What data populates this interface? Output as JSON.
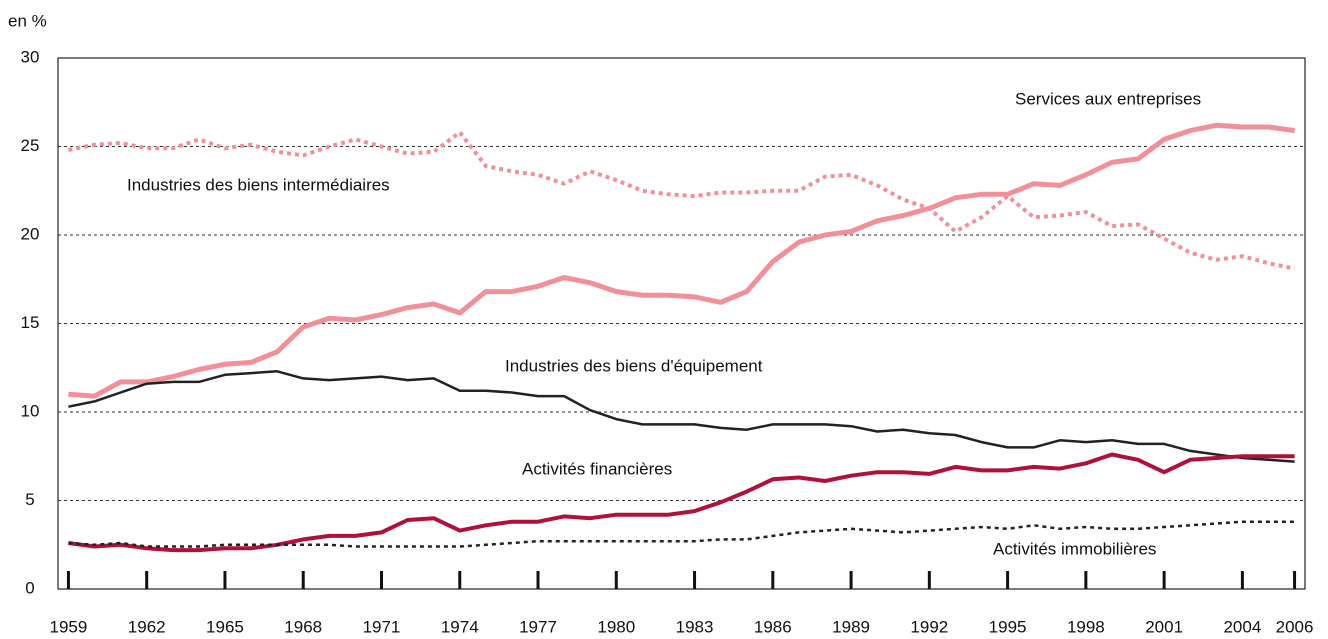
{
  "chart_data": {
    "type": "line",
    "unit_label": "en %",
    "x": [
      1959,
      1960,
      1961,
      1962,
      1963,
      1964,
      1965,
      1966,
      1967,
      1968,
      1969,
      1970,
      1971,
      1972,
      1973,
      1974,
      1975,
      1976,
      1977,
      1978,
      1979,
      1980,
      1981,
      1982,
      1983,
      1984,
      1985,
      1986,
      1987,
      1988,
      1989,
      1990,
      1991,
      1992,
      1993,
      1994,
      1995,
      1996,
      1997,
      1998,
      1999,
      2000,
      2001,
      2002,
      2003,
      2004,
      2005,
      2006
    ],
    "series": [
      {
        "name": "Services aux entreprises",
        "color": "#f2909a",
        "style": "solid",
        "values": [
          11.0,
          10.9,
          11.7,
          11.7,
          12.0,
          12.4,
          12.7,
          12.8,
          13.4,
          14.8,
          15.3,
          15.2,
          15.5,
          15.9,
          16.1,
          15.6,
          16.8,
          16.8,
          17.1,
          17.6,
          17.3,
          16.8,
          16.6,
          16.6,
          16.5,
          16.2,
          16.8,
          18.5,
          19.6,
          20.0,
          20.2,
          20.8,
          21.1,
          21.5,
          22.1,
          22.3,
          22.3,
          22.9,
          22.8,
          23.4,
          24.1,
          24.3,
          25.4,
          25.9,
          26.2,
          26.1,
          26.1,
          25.9
        ]
      },
      {
        "name": "Industries des biens intermédiaires",
        "color": "#f2909a",
        "style": "dotted",
        "values": [
          24.8,
          25.1,
          25.2,
          24.9,
          24.9,
          25.4,
          24.9,
          25.1,
          24.7,
          24.5,
          25.0,
          25.4,
          25.0,
          24.6,
          24.7,
          25.8,
          23.9,
          23.6,
          23.4,
          22.9,
          23.6,
          23.1,
          22.5,
          22.3,
          22.2,
          22.4,
          22.4,
          22.5,
          22.5,
          23.3,
          23.4,
          22.8,
          22.0,
          21.5,
          20.2,
          21.0,
          22.2,
          21.0,
          21.1,
          21.3,
          20.5,
          20.6,
          19.8,
          19.0,
          18.6,
          18.8,
          18.4,
          18.1
        ]
      },
      {
        "name": "Industries des biens d'équipement",
        "color": "#222222",
        "style": "solid",
        "values": [
          10.3,
          10.6,
          11.1,
          11.6,
          11.7,
          11.7,
          12.1,
          12.2,
          12.3,
          11.9,
          11.8,
          11.9,
          12.0,
          11.8,
          11.9,
          11.2,
          11.2,
          11.1,
          10.9,
          10.9,
          10.1,
          9.6,
          9.3,
          9.3,
          9.3,
          9.1,
          9.0,
          9.3,
          9.3,
          9.3,
          9.2,
          8.9,
          9.0,
          8.8,
          8.7,
          8.3,
          8.0,
          8.0,
          8.4,
          8.3,
          8.4,
          8.2,
          8.2,
          7.8,
          7.6,
          7.4,
          7.3,
          7.2
        ]
      },
      {
        "name": "Activités financières",
        "color": "#b0103a",
        "style": "solid",
        "values": [
          2.6,
          2.4,
          2.5,
          2.3,
          2.2,
          2.2,
          2.3,
          2.3,
          2.5,
          2.8,
          3.0,
          3.0,
          3.2,
          3.9,
          4.0,
          3.3,
          3.6,
          3.8,
          3.8,
          4.1,
          4.0,
          4.2,
          4.2,
          4.2,
          4.4,
          4.9,
          5.5,
          6.2,
          6.3,
          6.1,
          6.4,
          6.6,
          6.6,
          6.5,
          6.9,
          6.7,
          6.7,
          6.9,
          6.8,
          7.1,
          7.6,
          7.3,
          6.6,
          7.3,
          7.4,
          7.5,
          7.5,
          7.5
        ]
      },
      {
        "name": "Activités immobilières",
        "color": "#222222",
        "style": "dotted",
        "values": [
          2.6,
          2.5,
          2.6,
          2.4,
          2.4,
          2.4,
          2.5,
          2.5,
          2.5,
          2.5,
          2.5,
          2.4,
          2.4,
          2.4,
          2.4,
          2.4,
          2.5,
          2.6,
          2.7,
          2.7,
          2.7,
          2.7,
          2.7,
          2.7,
          2.7,
          2.8,
          2.8,
          3.0,
          3.2,
          3.3,
          3.4,
          3.3,
          3.2,
          3.3,
          3.4,
          3.5,
          3.4,
          3.6,
          3.4,
          3.5,
          3.4,
          3.4,
          3.5,
          3.6,
          3.7,
          3.8,
          3.8,
          3.8
        ]
      }
    ],
    "xlim": [
      1958.6,
      2006.4
    ],
    "xticks": [
      1959,
      1962,
      1965,
      1968,
      1971,
      1974,
      1977,
      1980,
      1983,
      1986,
      1989,
      1992,
      1995,
      1998,
      2001,
      2004,
      2006
    ],
    "ylim": [
      0,
      30
    ],
    "yticks": [
      0,
      5,
      10,
      15,
      20,
      25,
      30
    ],
    "grid": true
  }
}
